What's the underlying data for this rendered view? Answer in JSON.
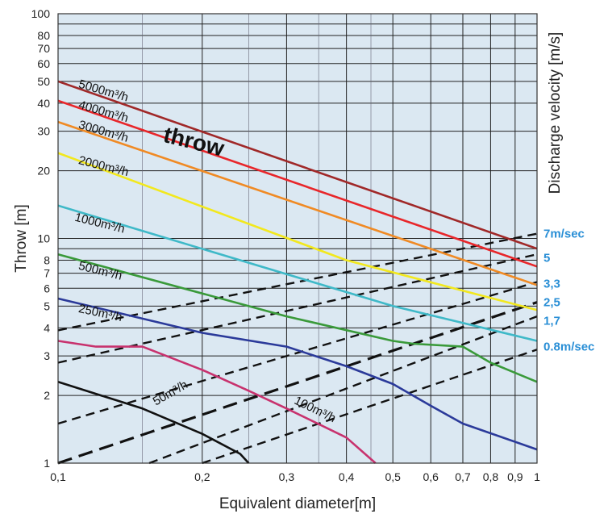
{
  "chart_data": {
    "type": "line",
    "title": "",
    "xlabel": "Equivalent diameter[m]",
    "ylabel": "Throw [m]",
    "y2label": "Discharge velocity [m/s]",
    "annotation": "throw",
    "xscale": "log",
    "yscale": "log",
    "xlim": [
      0.1,
      1
    ],
    "ylim": [
      1,
      100
    ],
    "grid": true,
    "background": "#dbe8f2",
    "x_ticks": [
      {
        "value": 0.1,
        "label": "0,1"
      },
      {
        "value": 0.2,
        "label": "0,2"
      },
      {
        "value": 0.3,
        "label": "0,3"
      },
      {
        "value": 0.4,
        "label": "0,4"
      },
      {
        "value": 0.5,
        "label": "0,5"
      },
      {
        "value": 0.6,
        "label": "0,6"
      },
      {
        "value": 0.7,
        "label": "0,7"
      },
      {
        "value": 0.8,
        "label": "0,8"
      },
      {
        "value": 0.9,
        "label": "0,9"
      },
      {
        "value": 1,
        "label": "1"
      }
    ],
    "y_ticks": [
      {
        "value": 1,
        "label": "1"
      },
      {
        "value": 2,
        "label": "2"
      },
      {
        "value": 3,
        "label": "3"
      },
      {
        "value": 4,
        "label": "4"
      },
      {
        "value": 5,
        "label": "5"
      },
      {
        "value": 6,
        "label": "6"
      },
      {
        "value": 7,
        "label": "7"
      },
      {
        "value": 8,
        "label": "8"
      },
      {
        "value": 10,
        "label": "10"
      },
      {
        "value": 20,
        "label": "20"
      },
      {
        "value": 30,
        "label": "30"
      },
      {
        "value": 40,
        "label": "40"
      },
      {
        "value": 50,
        "label": "50"
      },
      {
        "value": 60,
        "label": "60"
      },
      {
        "value": 70,
        "label": "70"
      },
      {
        "value": 80,
        "label": "80"
      },
      {
        "value": 100,
        "label": "100"
      }
    ],
    "series": [
      {
        "name": "5000m³/h",
        "color": "#a02828",
        "points": [
          [
            0.1,
            50
          ],
          [
            1,
            9
          ]
        ]
      },
      {
        "name": "4000m³/h",
        "color": "#e8262a",
        "points": [
          [
            0.1,
            41
          ],
          [
            1,
            7.5
          ]
        ]
      },
      {
        "name": "3000m³/h",
        "color": "#f08a24",
        "points": [
          [
            0.1,
            33
          ],
          [
            1,
            6.2
          ]
        ]
      },
      {
        "name": "2000m³/h",
        "color": "#f2e81e",
        "points": [
          [
            0.1,
            24
          ],
          [
            0.4,
            8
          ],
          [
            1,
            4.8
          ]
        ]
      },
      {
        "name": "1000m³/h",
        "color": "#3fb9c8",
        "points": [
          [
            0.1,
            14
          ],
          [
            0.5,
            5
          ],
          [
            1,
            3.5
          ]
        ]
      },
      {
        "name": "500m³/h",
        "color": "#3a9a3a",
        "points": [
          [
            0.1,
            8.5
          ],
          [
            0.3,
            4.5
          ],
          [
            0.5,
            3.5
          ],
          [
            0.55,
            3.4
          ],
          [
            0.7,
            3.3
          ],
          [
            0.8,
            2.8
          ],
          [
            1,
            2.3
          ]
        ]
      },
      {
        "name": "250m³/h",
        "color": "#2b3a9a",
        "points": [
          [
            0.1,
            5.4
          ],
          [
            0.2,
            3.8
          ],
          [
            0.3,
            3.3
          ],
          [
            0.4,
            2.7
          ],
          [
            0.5,
            2.25
          ],
          [
            0.6,
            1.8
          ],
          [
            0.7,
            1.5
          ],
          [
            1,
            1.15
          ]
        ]
      },
      {
        "name": "100m³/h",
        "color": "#c8326e",
        "points": [
          [
            0.1,
            3.5
          ],
          [
            0.12,
            3.3
          ],
          [
            0.15,
            3.3
          ],
          [
            0.2,
            2.6
          ],
          [
            0.25,
            2.1
          ],
          [
            0.3,
            1.75
          ],
          [
            0.4,
            1.3
          ],
          [
            0.46,
            1
          ]
        ]
      },
      {
        "name": "50m³/h",
        "color": "#111111",
        "points": [
          [
            0.1,
            2.3
          ],
          [
            0.15,
            1.75
          ],
          [
            0.2,
            1.35
          ],
          [
            0.24,
            1.1
          ],
          [
            0.25,
            1
          ]
        ]
      }
    ],
    "curve_labels": [
      {
        "text": "5000m³/h",
        "x": 0.11,
        "y": 47,
        "angle": 16
      },
      {
        "text": "4000m³/h",
        "x": 0.11,
        "y": 38,
        "angle": 16
      },
      {
        "text": "3000m³/h",
        "x": 0.11,
        "y": 31,
        "angle": 16
      },
      {
        "text": "2000m³/h",
        "x": 0.11,
        "y": 21.5,
        "angle": 14
      },
      {
        "text": "1000m³/h",
        "x": 0.108,
        "y": 12,
        "angle": 14
      },
      {
        "text": "500m³/h",
        "x": 0.11,
        "y": 7.3,
        "angle": 14
      },
      {
        "text": "250m³/h",
        "x": 0.11,
        "y": 4.7,
        "angle": 12
      },
      {
        "text": "100m³/h",
        "x": 0.31,
        "y": 1.85,
        "angle": 26
      },
      {
        "text": "50m³/h",
        "x": 0.16,
        "y": 1.8,
        "angle": -30
      }
    ],
    "throw_annotation": {
      "x": 0.165,
      "y": 27,
      "angle": 14
    },
    "velocity_lines": [
      {
        "label": "7m/sec",
        "points": [
          [
            0.1,
            3.9
          ],
          [
            1,
            10.5
          ]
        ]
      },
      {
        "label": "5",
        "points": [
          [
            0.1,
            2.8
          ],
          [
            1,
            8.5
          ]
        ]
      },
      {
        "label": "3,3",
        "points": [
          [
            0.1,
            1.5
          ],
          [
            1,
            6.4
          ]
        ]
      },
      {
        "label": "2,5",
        "points": [
          [
            0.1,
            1
          ],
          [
            1,
            5.2
          ]
        ]
      },
      {
        "label": "1,7",
        "points": [
          [
            0.155,
            1
          ],
          [
            1,
            4.5
          ]
        ]
      },
      {
        "label": "0.8m/sec",
        "points": [
          [
            0.2,
            1
          ],
          [
            1,
            3.2
          ]
        ]
      }
    ],
    "velocity_label_values": [
      10.5,
      8.2,
      6.3,
      5.2,
      4.3,
      3.3
    ]
  }
}
